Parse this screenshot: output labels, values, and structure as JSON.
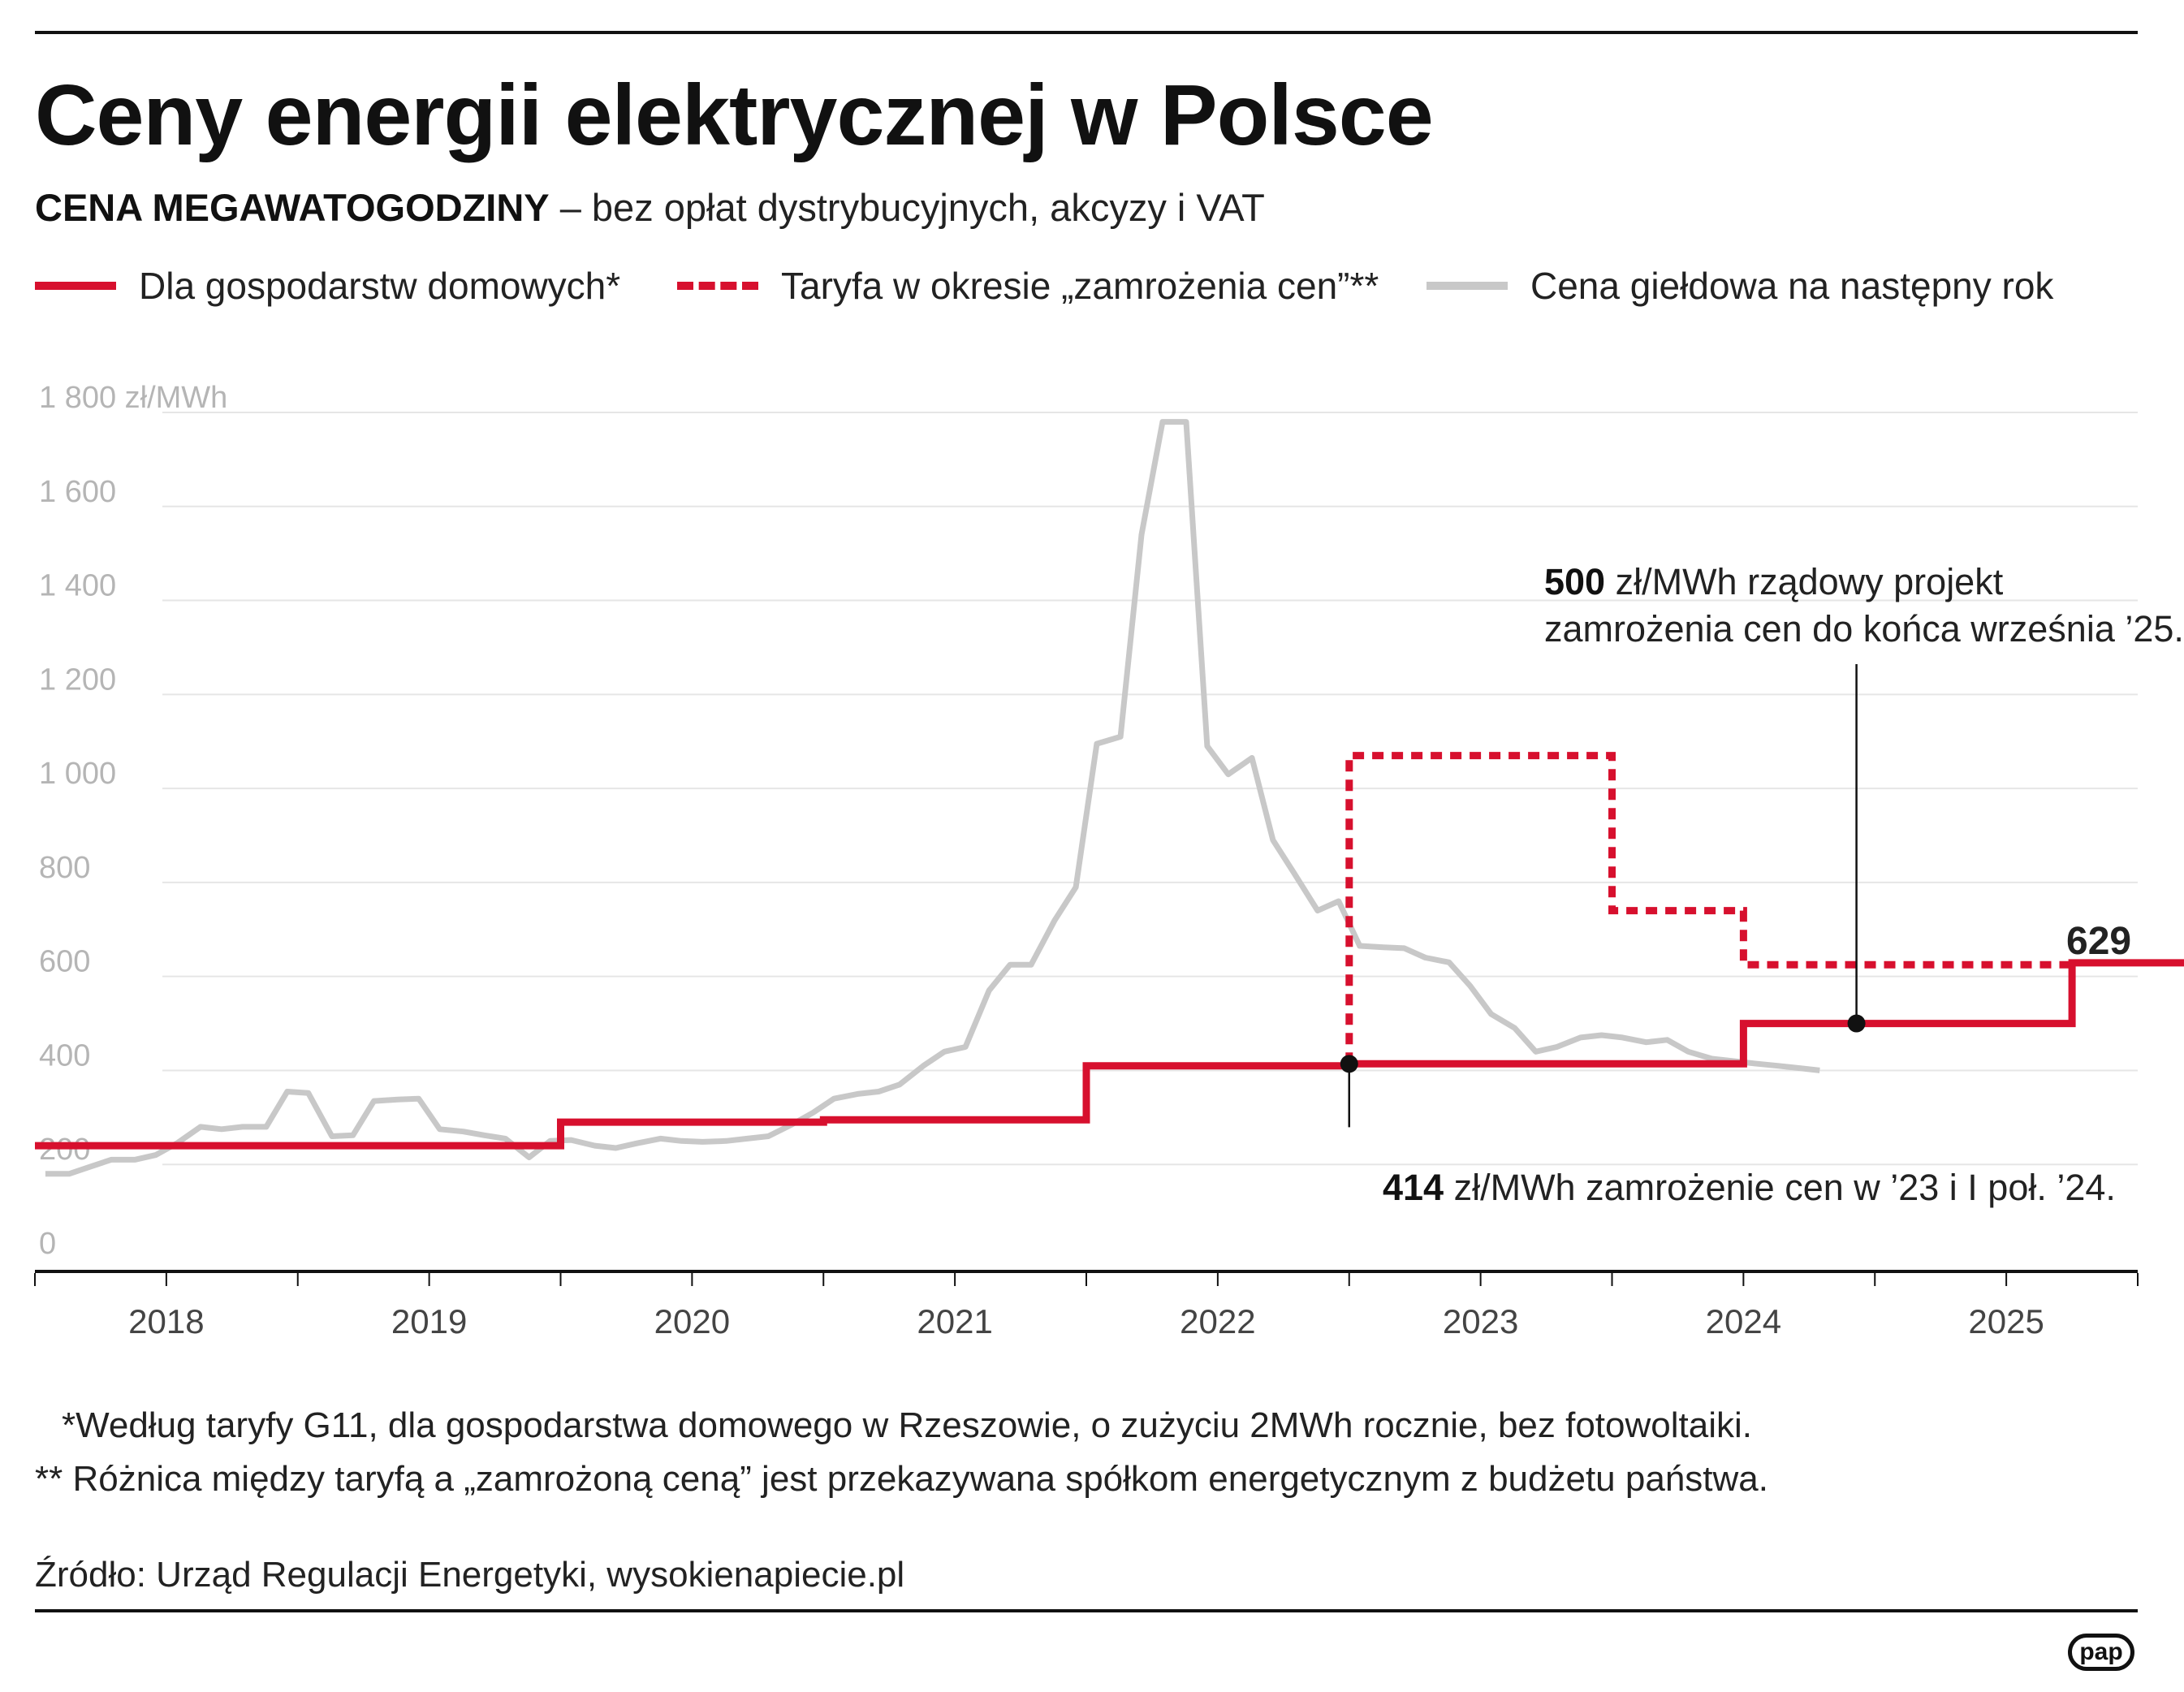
{
  "header": {
    "title": "Ceny energii elektrycznej w Polsce",
    "subtitle_bold": "CENA MEGAWATOGODZINY",
    "subtitle_rest": " – bez opłat dystrybucyjnych, akcyzy i VAT"
  },
  "legend": {
    "households": "Dla gospodarstw domowych*",
    "tariff": "Taryfa w okresie „zamrożenia cen”**",
    "exchange": "Cena giełdowa na następny rok"
  },
  "colors": {
    "red": "#d7102e",
    "grey": "#c8c8c8",
    "axis": "#111111",
    "grid": "#e6e6e6"
  },
  "annotations": {
    "a500_value": "500",
    "a500_line1": " zł/MWh rządowy projekt",
    "a500_line2": "zamrożenia cen do końca września ’25.",
    "a414_value": "414",
    "a414_text": " zł/MWh zamrożenie cen w ’23 i I poł. ’24.",
    "end_value": "629"
  },
  "footnotes": {
    "n1": "*Według taryfy G11, dla gospodarstwa domowego w Rzeszowie, o zużyciu 2MWh rocznie, bez fotowoltaiki.",
    "n2": "** Różnica między taryfą a „zamrożoną ceną” jest przekazywana spółkom energetycznym z budżetu państwa.",
    "source": "Źródło: Urząd Regulacji Energetyki, wysokienapiecie.pl"
  },
  "logo": "pap",
  "chart_data": {
    "type": "line",
    "ylim": [
      0,
      1800
    ],
    "xlim": [
      2017.5,
      2025.5
    ],
    "y_ticks": [
      0,
      200,
      400,
      600,
      800,
      1000,
      1200,
      1400,
      1600,
      1800
    ],
    "y_tick_labels": [
      "0",
      "200",
      "400",
      "600",
      "800",
      "1 000",
      "1 200",
      "1 400",
      "1 600",
      "1 800 zł/MWh"
    ],
    "x_labels": [
      "2018",
      "2019",
      "2020",
      "2021",
      "2022",
      "2023",
      "2024",
      "2025"
    ],
    "series": [
      {
        "name": "Dla gospodarstw domowych*",
        "style": "solid",
        "x": [
          2017.5,
          2019.5,
          2019.5,
          2020.5,
          2020.5,
          2021.5,
          2021.5,
          2022.5,
          2022.5,
          2024.0,
          2024.0,
          2025.25,
          2025.25,
          2025.7
        ],
        "y": [
          240,
          240,
          290,
          290,
          295,
          295,
          410,
          410,
          414,
          414,
          500,
          500,
          629,
          629
        ]
      },
      {
        "name": "Taryfa w okresie „zamrożenia cen”**",
        "style": "dashed",
        "x": [
          2022.5,
          2022.5,
          2023.5,
          2023.5,
          2024.0,
          2024.0,
          2025.25
        ],
        "y": [
          414,
          1070,
          1070,
          740,
          740,
          625,
          625
        ]
      },
      {
        "name": "Cena giełdowa na następny rok",
        "style": "grey",
        "x": [
          2017.54,
          2017.63,
          2017.71,
          2017.79,
          2017.88,
          2017.96,
          2018.04,
          2018.13,
          2018.21,
          2018.29,
          2018.38,
          2018.46,
          2018.54,
          2018.63,
          2018.71,
          2018.79,
          2018.88,
          2018.96,
          2019.04,
          2019.13,
          2019.21,
          2019.29,
          2019.38,
          2019.46,
          2019.54,
          2019.63,
          2019.71,
          2019.79,
          2019.88,
          2019.96,
          2020.04,
          2020.13,
          2020.21,
          2020.29,
          2020.38,
          2020.46,
          2020.54,
          2020.63,
          2020.71,
          2020.79,
          2020.88,
          2020.96,
          2021.04,
          2021.13,
          2021.21,
          2021.29,
          2021.38,
          2021.46,
          2021.54,
          2021.63,
          2021.71,
          2021.79,
          2021.88,
          2021.96,
          2022.04,
          2022.13,
          2022.21,
          2022.29,
          2022.38,
          2022.46,
          2022.54,
          2022.63,
          2022.71,
          2022.79,
          2022.88,
          2022.96,
          2023.04,
          2023.13,
          2023.21,
          2023.29,
          2023.38,
          2023.46,
          2023.54,
          2023.63,
          2023.71,
          2023.79,
          2023.88,
          2023.96,
          2024.04,
          2024.13,
          2024.21,
          2024.29
        ],
        "y": [
          180,
          180,
          195,
          210,
          210,
          220,
          245,
          280,
          275,
          280,
          280,
          355,
          352,
          260,
          262,
          335,
          338,
          340,
          275,
          270,
          262,
          255,
          215,
          250,
          252,
          240,
          235,
          245,
          255,
          250,
          248,
          250,
          255,
          260,
          285,
          310,
          340,
          350,
          355,
          370,
          410,
          440,
          450,
          570,
          625,
          625,
          720,
          790,
          1095,
          1110,
          1540,
          1780,
          1780,
          1090,
          1030,
          1065,
          890,
          820,
          740,
          760,
          665,
          662,
          660,
          640,
          630,
          580,
          520,
          490,
          440,
          450,
          470,
          475,
          470,
          460,
          465,
          440,
          425,
          420,
          415,
          410,
          405,
          400
        ]
      }
    ]
  }
}
